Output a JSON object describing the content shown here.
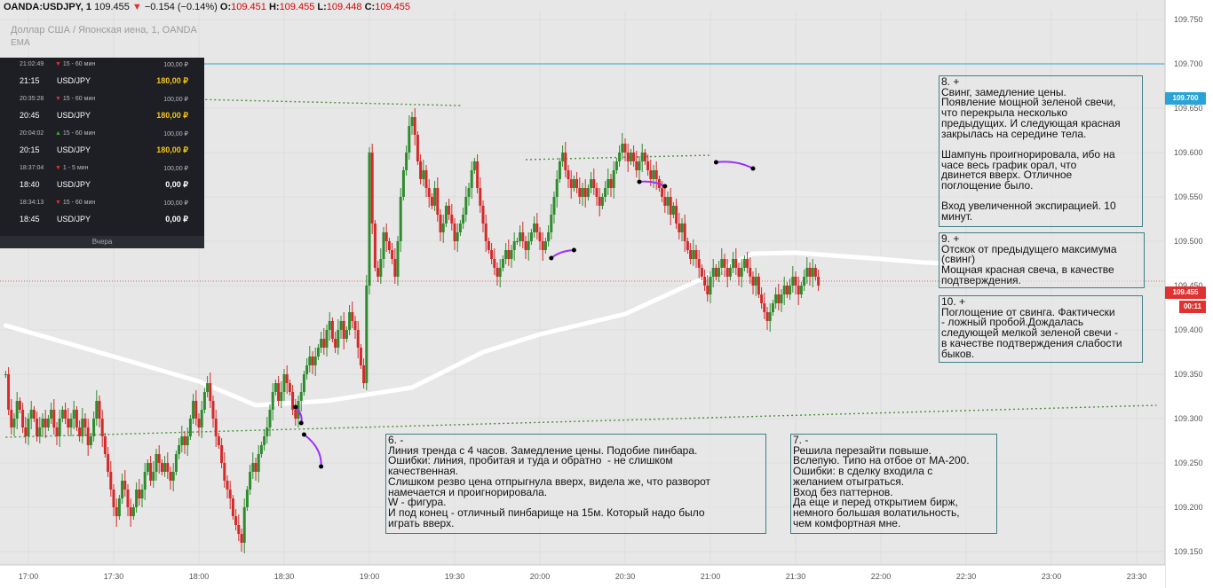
{
  "header": {
    "symbol": "OANDA:USDJPY, 1",
    "last": "109.455",
    "change": "−0.154 (−0.14%)",
    "o_label": "O:",
    "o": "109.451",
    "h_label": "H:",
    "h": "109.455",
    "l_label": "L:",
    "l": "109.448",
    "c_label": "C:",
    "c": "109.455",
    "subtitle": "Доллар США / Японская иена, 1, OANDA",
    "indicator": "EMA"
  },
  "trades_panel": {
    "items": [
      {
        "time_small": "21:02:49",
        "direction": "down",
        "arrow": "▼",
        "duration": "15 - 60 мин",
        "amount": "100,00 ₽",
        "time": "21:15",
        "pair": "USD/JPY",
        "payout": "180,00 ₽",
        "payout_color": "gold"
      },
      {
        "time_small": "20:35:28",
        "direction": "down",
        "arrow": "▼",
        "duration": "15 - 60 мин",
        "amount": "100,00 ₽",
        "time": "20:45",
        "pair": "USD/JPY",
        "payout": "180,00 ₽",
        "payout_color": "gold"
      },
      {
        "time_small": "20:04:02",
        "direction": "up",
        "arrow": "▲",
        "duration": "15 - 60 мин",
        "amount": "100,00 ₽",
        "time": "20:15",
        "pair": "USD/JPY",
        "payout": "180,00 ₽",
        "payout_color": "gold"
      },
      {
        "time_small": "18:37:04",
        "direction": "down",
        "arrow": "▼",
        "duration": "1 - 5 мин",
        "amount": "100,00 ₽",
        "time": "18:40",
        "pair": "USD/JPY",
        "payout": "0,00 ₽",
        "payout_color": "white"
      },
      {
        "time_small": "18:34:13",
        "direction": "down",
        "arrow": "▼",
        "duration": "15 - 60 мин",
        "amount": "100,00 ₽",
        "time": "18:45",
        "pair": "USD/JPY",
        "payout": "0,00 ₽",
        "payout_color": "white"
      }
    ],
    "footer": "Вчера"
  },
  "notes": {
    "n6": "6. -\nЛиния тренда с 4 часов. Замедление цены. Подобие пинбара.\nОшибки: линия, пробитая и туда и обратно  - не слишком\nкачественная.\nСлишком резво цена отпрыгнула вверх, видела же, что разворот\nнамечается и проигнорировала.\nW - фигура.\nИ под конец - отличный пинбарище на 15м. Который надо было\nиграть вверх.",
    "n7": "7. -\nРешила перезайти повыше.\nВслепую. Типо на отбое от МА-200.\nОшибки: в сделку входила с\nжеланием отыграться.\nВход без паттернов.\nДа еще и перед открытием бирж,\nнемного большая волатильность,\nчем комфортная мне.",
    "n8": "8. +\nСвинг, замедление цены.\nПоявление мощной зеленой свечи,\nчто перекрыла несколько\nпредыдущих. И следующая красная\nзакрылась на середине тела.\n\nШампунь проигнорировала, ибо на\nчасе весь график орал, что\nдвинется вверх. Отличное\nпоглощение было.\n\nВход увеличенной экспирацией. 10\nминут.",
    "n9": "9. +\nОтскок от предыдущего максимума\n(свинг)\nМощная красная свеча, в качестве\nподтверждения.",
    "n10": "10. +\nПоглощение от свинга. Фактически\n- ложный пробой.Дождалась\nследующей мелкой зеленой свечи -\nв качестве подтверждения слабости\nбыков."
  },
  "price_badges": {
    "level": "109.700",
    "last": "109.455",
    "timer": "00:11"
  },
  "colors": {
    "up": "#2e8b2e",
    "down": "#d42a2a",
    "ema": "#ffffff",
    "level_line": "#29a3d6",
    "trend": "#4a8f3a",
    "arrow": "#9b30ff"
  },
  "chart_data": {
    "type": "candlestick",
    "title": "",
    "y_axis_ticks": [
      "109.750",
      "109.700",
      "109.650",
      "109.600",
      "109.550",
      "109.500",
      "109.450",
      "109.400",
      "109.350",
      "109.300",
      "109.250",
      "109.200",
      "109.150"
    ],
    "ylim": [
      109.135,
      109.76
    ],
    "x_axis_ticks": [
      "17:00",
      "17:30",
      "18:00",
      "18:30",
      "19:00",
      "19:30",
      "20:00",
      "20:30",
      "21:00",
      "21:30",
      "22:00",
      "22:30",
      "23:00",
      "23:30"
    ],
    "x_range_minutes": [
      1010,
      1420
    ],
    "horizontal_levels": [
      {
        "price": 109.7,
        "label": "109.700"
      },
      {
        "price": 109.455,
        "label": "109.455"
      }
    ],
    "close_series_1m": {
      "start": "16:52",
      "step_minutes": 1,
      "closes": [
        109.35,
        109.31,
        109.29,
        109.3,
        109.32,
        109.31,
        109.29,
        109.28,
        109.3,
        109.31,
        109.3,
        109.28,
        109.29,
        109.3,
        109.29,
        109.3,
        109.31,
        109.29,
        109.28,
        109.3,
        109.31,
        109.3,
        109.29,
        109.3,
        109.31,
        109.29,
        109.28,
        109.3,
        109.29,
        109.27,
        109.28,
        109.3,
        109.32,
        109.3,
        109.28,
        109.26,
        109.24,
        109.22,
        109.2,
        109.19,
        109.21,
        109.23,
        109.22,
        109.2,
        109.19,
        109.2,
        109.22,
        109.21,
        109.22,
        109.24,
        109.25,
        109.23,
        109.24,
        109.26,
        109.25,
        109.24,
        109.25,
        109.24,
        109.23,
        109.24,
        109.26,
        109.27,
        109.28,
        109.27,
        109.28,
        109.3,
        109.32,
        109.3,
        109.29,
        109.31,
        109.33,
        109.34,
        109.32,
        109.3,
        109.28,
        109.27,
        109.25,
        109.23,
        109.22,
        109.21,
        109.19,
        109.18,
        109.17,
        109.16,
        109.2,
        109.22,
        109.24,
        109.25,
        109.24,
        109.26,
        109.27,
        109.28,
        109.29,
        109.31,
        109.33,
        109.34,
        109.32,
        109.33,
        109.35,
        109.34,
        109.33,
        109.31,
        109.3,
        109.32,
        109.33,
        109.35,
        109.36,
        109.37,
        109.36,
        109.37,
        109.38,
        109.39,
        109.38,
        109.4,
        109.41,
        109.39,
        109.38,
        109.4,
        109.41,
        109.39,
        109.4,
        109.42,
        109.41,
        109.4,
        109.38,
        109.36,
        109.34,
        109.45,
        109.6,
        109.52,
        109.47,
        109.46,
        109.48,
        109.51,
        109.5,
        109.49,
        109.48,
        109.46,
        109.5,
        109.55,
        109.58,
        109.6,
        109.63,
        109.64,
        109.62,
        109.59,
        109.57,
        109.58,
        109.56,
        109.55,
        109.54,
        109.56,
        109.53,
        109.51,
        109.52,
        109.54,
        109.53,
        109.52,
        109.5,
        109.51,
        109.52,
        109.53,
        109.55,
        109.56,
        109.58,
        109.59,
        109.56,
        109.54,
        109.52,
        109.5,
        109.49,
        109.48,
        109.47,
        109.46,
        109.47,
        109.48,
        109.49,
        109.48,
        109.49,
        109.5,
        109.5,
        109.51,
        109.5,
        109.49,
        109.5,
        109.51,
        109.52,
        109.51,
        109.5,
        109.49,
        109.5,
        109.51,
        109.53,
        109.55,
        109.57,
        109.59,
        109.6,
        109.58,
        109.57,
        109.56,
        109.57,
        109.56,
        109.55,
        109.56,
        109.55,
        109.56,
        109.57,
        109.56,
        109.55,
        109.54,
        109.55,
        109.56,
        109.57,
        109.56,
        109.58,
        109.59,
        109.6,
        109.61,
        109.6,
        109.59,
        109.6,
        109.59,
        109.58,
        109.59,
        109.6,
        109.59,
        109.58,
        109.57,
        109.58,
        109.57,
        109.56,
        109.55,
        109.54,
        109.55,
        109.53,
        109.54,
        109.52,
        109.51,
        109.52,
        109.5,
        109.49,
        109.48,
        109.49,
        109.48,
        109.47,
        109.46,
        109.45,
        109.44,
        109.46,
        109.47,
        109.46,
        109.47,
        109.48,
        109.47,
        109.46,
        109.47,
        109.48,
        109.47,
        109.46,
        109.47,
        109.48,
        109.47,
        109.46,
        109.45,
        109.46,
        109.44,
        109.43,
        109.42,
        109.41,
        109.42,
        109.43,
        109.44,
        109.43,
        109.44,
        109.45,
        109.44,
        109.45,
        109.46,
        109.45,
        109.44,
        109.45,
        109.46,
        109.47,
        109.46,
        109.47,
        109.46,
        109.45
      ]
    },
    "ema": {
      "length": 200,
      "points": [
        {
          "time": "16:52",
          "price": 109.405
        },
        {
          "time": "17:30",
          "price": 109.37
        },
        {
          "time": "18:00",
          "price": 109.342
        },
        {
          "time": "18:20",
          "price": 109.315
        },
        {
          "time": "18:45",
          "price": 109.32
        },
        {
          "time": "19:15",
          "price": 109.335
        },
        {
          "time": "19:40",
          "price": 109.375
        },
        {
          "time": "20:00",
          "price": 109.395
        },
        {
          "time": "20:30",
          "price": 109.418
        },
        {
          "time": "21:00",
          "price": 109.462
        },
        {
          "time": "21:15",
          "price": 109.486
        },
        {
          "time": "21:30",
          "price": 109.487
        },
        {
          "time": "22:00",
          "price": 109.48
        },
        {
          "time": "22:15",
          "price": 109.476
        },
        {
          "time": "22:25",
          "price": 109.475
        }
      ]
    },
    "trend_lines": [
      {
        "from_time": "16:52",
        "from_price": 109.279,
        "to_time": "23:37",
        "to_price": 109.315
      },
      {
        "from_time": "16:52",
        "from_price": 109.665,
        "to_time": "19:32",
        "to_price": 109.653
      },
      {
        "from_time": "19:55",
        "from_price": 109.592,
        "to_time": "21:00",
        "to_price": 109.597
      }
    ],
    "trade_arrows": [
      {
        "from_time": "18:34",
        "from_price": 109.313,
        "to_time": "18:36",
        "to_price": 109.295
      },
      {
        "from_time": "18:37",
        "from_price": 109.282,
        "to_time": "18:43",
        "to_price": 109.246
      },
      {
        "from_time": "20:04",
        "from_price": 109.481,
        "to_time": "20:12",
        "to_price": 109.49
      },
      {
        "from_time": "20:35",
        "from_price": 109.567,
        "to_time": "20:44",
        "to_price": 109.562
      },
      {
        "from_time": "21:02",
        "from_price": 109.589,
        "to_time": "21:15",
        "to_price": 109.582
      }
    ]
  }
}
